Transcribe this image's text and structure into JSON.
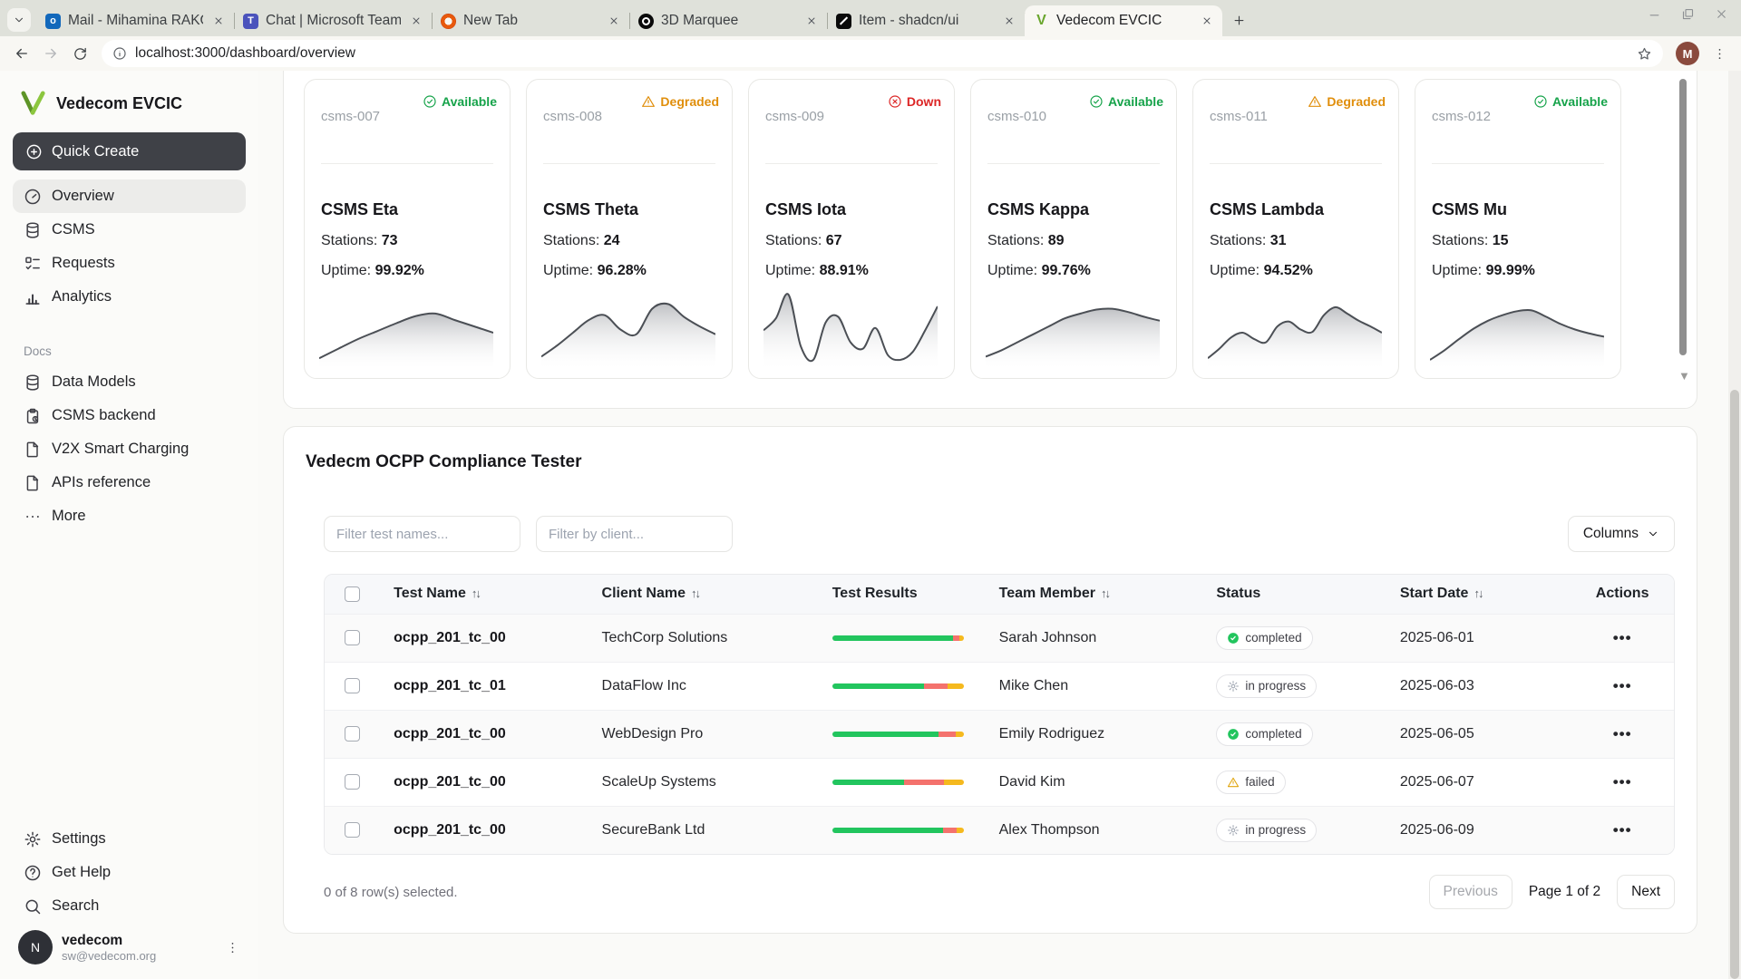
{
  "browser": {
    "tabs": [
      {
        "icon": "outlook-icon",
        "label": "Mail - Mihamina RAKOTO",
        "active": false
      },
      {
        "icon": "teams-icon",
        "label": "Chat | Microsoft Teams",
        "active": false
      },
      {
        "icon": "newtab-icon",
        "label": "New Tab",
        "active": false
      },
      {
        "icon": "marquee-icon",
        "label": "3D Marquee",
        "active": false
      },
      {
        "icon": "shadcn-icon",
        "label": "Item - shadcn/ui",
        "active": false
      },
      {
        "icon": "vedecom-icon",
        "label": "Vedecom EVCIC",
        "active": true
      }
    ],
    "url": "localhost:3000/dashboard/overview",
    "profile_letter": "M"
  },
  "sidebar": {
    "brand": "Vedecom EVCIC",
    "quick_create": "Quick Create",
    "nav": [
      {
        "icon": "gauge-icon",
        "label": "Overview",
        "active": true
      },
      {
        "icon": "database-icon",
        "label": "CSMS",
        "active": false
      },
      {
        "icon": "list-todo-icon",
        "label": "Requests",
        "active": false
      },
      {
        "icon": "bar-chart-icon",
        "label": "Analytics",
        "active": false
      }
    ],
    "docs_label": "Docs",
    "docs": [
      {
        "icon": "database-icon",
        "label": "Data Models"
      },
      {
        "icon": "clipboard-icon",
        "label": "CSMS backend"
      },
      {
        "icon": "file-icon",
        "label": "V2X Smart Charging"
      },
      {
        "icon": "file-icon",
        "label": "APIs reference"
      },
      {
        "icon": "ellipsis-icon",
        "label": "More"
      }
    ],
    "footer": [
      {
        "icon": "gear-icon",
        "label": "Settings"
      },
      {
        "icon": "help-icon",
        "label": "Get Help"
      },
      {
        "icon": "search-icon",
        "label": "Search"
      }
    ],
    "user": {
      "avatar_letter": "N",
      "name": "vedecom",
      "email": "sw@vedecom.org"
    }
  },
  "colors": {
    "available": "#16a34a",
    "degraded": "#e08e0b",
    "down": "#dc2626",
    "bar_green": "#22c55e",
    "bar_red": "#f4726d",
    "bar_yellow": "#f5b91e",
    "brand_green": "#6aa62e"
  },
  "cards": [
    {
      "id": "csms-007",
      "status": "Available",
      "status_type": "available",
      "title": "CSMS Eta",
      "stations_label": "Stations:",
      "stations": "73",
      "uptime_label": "Uptime:",
      "uptime": "99.92%",
      "trend": [
        10,
        22,
        34,
        44,
        54,
        63,
        66,
        58,
        50,
        42
      ]
    },
    {
      "id": "csms-008",
      "status": "Degraded",
      "status_type": "degraded",
      "title": "CSMS Theta",
      "stations_label": "Stations:",
      "stations": "24",
      "uptime_label": "Uptime:",
      "uptime": "96.28%",
      "trend": [
        12,
        26,
        42,
        58,
        64,
        46,
        40,
        72,
        78,
        62,
        50,
        40
      ]
    },
    {
      "id": "csms-009",
      "status": "Down",
      "status_type": "down",
      "title": "CSMS Iota",
      "stations_label": "Stations:",
      "stations": "67",
      "uptime_label": "Uptime:",
      "uptime": "88.91%",
      "trend": [
        45,
        60,
        90,
        25,
        8,
        55,
        62,
        30,
        22,
        48,
        14,
        8,
        18,
        45,
        75
      ]
    },
    {
      "id": "csms-010",
      "status": "Available",
      "status_type": "available",
      "title": "CSMS Kappa",
      "stations_label": "Stations:",
      "stations": "89",
      "uptime_label": "Uptime:",
      "uptime": "99.76%",
      "trend": [
        12,
        20,
        30,
        40,
        50,
        60,
        66,
        71,
        72,
        68,
        62,
        57
      ]
    },
    {
      "id": "csms-011",
      "status": "Degraded",
      "status_type": "degraded",
      "title": "CSMS Lambda",
      "stations_label": "Stations:",
      "stations": "31",
      "uptime_label": "Uptime:",
      "uptime": "94.52%",
      "trend": [
        10,
        22,
        36,
        42,
        34,
        30,
        50,
        56,
        46,
        43,
        64,
        74,
        66,
        57,
        50,
        42
      ]
    },
    {
      "id": "csms-012",
      "status": "Available",
      "status_type": "available",
      "title": "CSMS Mu",
      "stations_label": "Stations:",
      "stations": "15",
      "uptime_label": "Uptime:",
      "uptime": "99.99%",
      "trend": [
        8,
        20,
        34,
        47,
        57,
        64,
        69,
        70,
        62,
        53,
        46,
        41,
        37
      ]
    }
  ],
  "compliance": {
    "title": "Vedecm OCPP Compliance Tester",
    "filter_test_placeholder": "Filter test names...",
    "filter_client_placeholder": "Filter by client...",
    "columns_button": "Columns",
    "table": {
      "headers": [
        {
          "label": "Test Name",
          "sortable": true
        },
        {
          "label": "Client Name",
          "sortable": true
        },
        {
          "label": "Test Results",
          "sortable": false
        },
        {
          "label": "Team Member",
          "sortable": true
        },
        {
          "label": "Status",
          "sortable": false
        },
        {
          "label": "Start Date",
          "sortable": true
        },
        {
          "label": "Actions",
          "sortable": false
        }
      ],
      "rows": [
        {
          "test": "ocpp_201_tc_00",
          "client": "TechCorp Solutions",
          "bar": {
            "green": 92,
            "red": 5,
            "yellow": 3
          },
          "team": "Sarah Johnson",
          "status": "completed",
          "status_type": "completed",
          "date": "2025-06-01"
        },
        {
          "test": "ocpp_201_tc_01",
          "client": "DataFlow Inc",
          "bar": {
            "green": 70,
            "red": 18,
            "yellow": 12
          },
          "team": "Mike Chen",
          "status": "in progress",
          "status_type": "in_progress",
          "date": "2025-06-03"
        },
        {
          "test": "ocpp_201_tc_00",
          "client": "WebDesign Pro",
          "bar": {
            "green": 81,
            "red": 13,
            "yellow": 6
          },
          "team": "Emily Rodriguez",
          "status": "completed",
          "status_type": "completed",
          "date": "2025-06-05"
        },
        {
          "test": "ocpp_201_tc_00",
          "client": "ScaleUp Systems",
          "bar": {
            "green": 55,
            "red": 30,
            "yellow": 15
          },
          "team": "David Kim",
          "status": "failed",
          "status_type": "failed",
          "date": "2025-06-07"
        },
        {
          "test": "ocpp_201_tc_00",
          "client": "SecureBank Ltd",
          "bar": {
            "green": 84,
            "red": 11,
            "yellow": 5
          },
          "team": "Alex Thompson",
          "status": "in progress",
          "status_type": "in_progress",
          "date": "2025-06-09"
        }
      ]
    },
    "selected_info": "0 of 8 row(s) selected.",
    "previous_label": "Previous",
    "page_info": "Page 1 of 2",
    "next_label": "Next"
  }
}
